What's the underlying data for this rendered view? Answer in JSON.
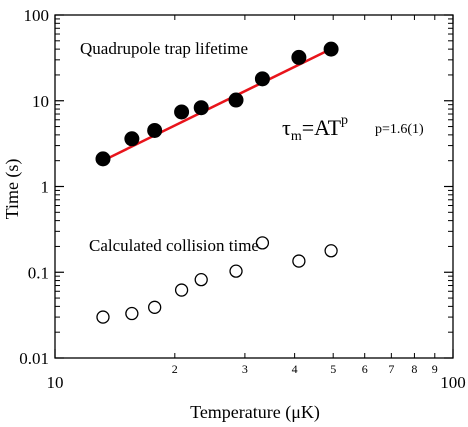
{
  "chart_data": {
    "type": "scatter",
    "xlabel": "Temperature (μK)",
    "ylabel": "Time (s)",
    "x_scale": "log",
    "y_scale": "log",
    "xlim": [
      10,
      100
    ],
    "ylim": [
      0.01,
      100
    ],
    "x_major_ticks": [
      10,
      100
    ],
    "x_major_labels": [
      "10",
      "100"
    ],
    "x_minor_ticks": [
      2,
      3,
      4,
      5,
      6,
      7,
      8,
      9
    ],
    "x_minor_labels": [
      "2",
      "3",
      "4",
      "5",
      "6",
      "7",
      "8",
      "9"
    ],
    "y_ticks": [
      0.01,
      0.1,
      1,
      10,
      100
    ],
    "y_tick_labels": [
      "0.01",
      "0.1",
      "1",
      "10",
      "100"
    ],
    "series": [
      {
        "name": "Quadrupole trap lifetime",
        "marker": "filled-circle",
        "x": [
          13.2,
          15.6,
          17.8,
          20.8,
          23.3,
          28.5,
          33.2,
          41.0,
          49.4
        ],
        "y": [
          2.1,
          3.6,
          4.5,
          7.4,
          8.3,
          10.2,
          18,
          32,
          40
        ]
      },
      {
        "name": "Calculated collision time",
        "marker": "open-circle",
        "x": [
          13.2,
          15.6,
          17.8,
          20.8,
          23.3,
          28.5,
          33.2,
          41.0,
          49.4
        ],
        "y": [
          0.03,
          0.033,
          0.039,
          0.062,
          0.082,
          0.103,
          0.22,
          0.135,
          0.178
        ]
      }
    ],
    "fit_line": {
      "color": "#e8141b",
      "x": [
        13.2,
        49.8
      ],
      "y": [
        2.0,
        41
      ]
    },
    "annotations": {
      "series1_label": "Quadrupole trap lifetime",
      "series2_label": "Calculated collision time",
      "formula_tau": "τ",
      "formula_sub": "m",
      "formula_eq": "=AT",
      "formula_sup": "p",
      "formula_p": "p=1.6(1)"
    },
    "grid": false
  }
}
